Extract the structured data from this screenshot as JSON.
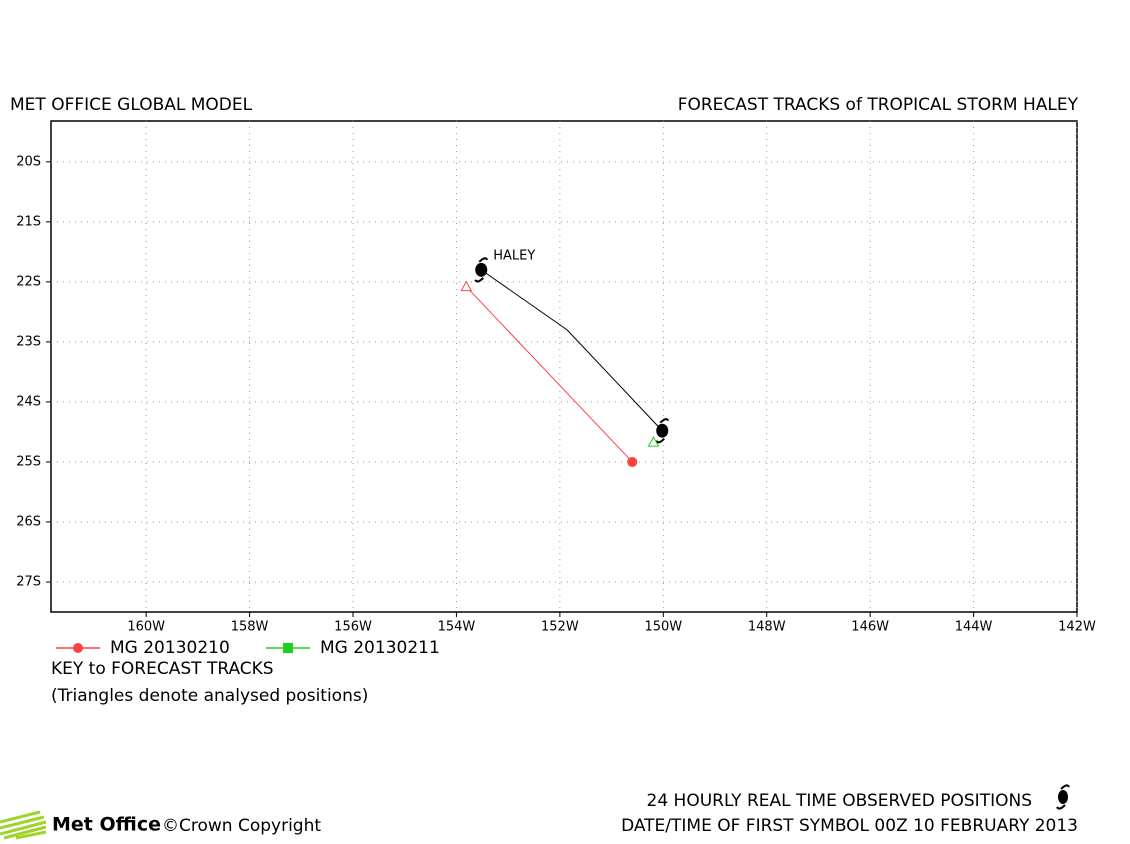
{
  "chart_data": {
    "type": "line",
    "subtitle": "MET OFFICE GLOBAL MODEL",
    "title": "FORECAST TRACKS of TROPICAL STORM HALEY",
    "xlim": [
      -161.84,
      -142
    ],
    "ylim": [
      -27.5,
      -19.32
    ],
    "xticks": [
      {
        "value": -160,
        "label": "160W"
      },
      {
        "value": -158,
        "label": "158W"
      },
      {
        "value": -156,
        "label": "156W"
      },
      {
        "value": -154,
        "label": "154W"
      },
      {
        "value": -152,
        "label": "152W"
      },
      {
        "value": -150,
        "label": "150W"
      },
      {
        "value": -148,
        "label": "148W"
      },
      {
        "value": -146,
        "label": "146W"
      },
      {
        "value": -144,
        "label": "144W"
      },
      {
        "value": -142,
        "label": "142W"
      }
    ],
    "yticks": [
      {
        "value": -20,
        "label": "20S"
      },
      {
        "value": -21,
        "label": "21S"
      },
      {
        "value": -22,
        "label": "22S"
      },
      {
        "value": -23,
        "label": "23S"
      },
      {
        "value": -24,
        "label": "24S"
      },
      {
        "value": -25,
        "label": "25S"
      },
      {
        "value": -26,
        "label": "26S"
      },
      {
        "value": -27,
        "label": "27S"
      }
    ],
    "grid": true,
    "track": {
      "label": "HALEY",
      "color": "#000000",
      "x": [
        -153.52,
        -151.86,
        -150.02
      ],
      "y": [
        -21.8,
        -22.8,
        -24.48
      ]
    },
    "series": [
      {
        "name": "MG 20130210",
        "color": "#ff4040",
        "x": [
          -153.81,
          -150.6
        ],
        "y": [
          -22.08,
          -25.0
        ]
      },
      {
        "name": "MG 20130211",
        "color": "#20d020",
        "x": [
          -150.19
        ],
        "y": [
          -24.67
        ]
      }
    ],
    "key_title": "KEY to FORECAST TRACKS",
    "key_note": "(Triangles denote analysed positions)",
    "observed_note": "24 HOURLY REAL TIME OBSERVED POSITIONS",
    "date_note": "DATE/TIME OF FIRST SYMBOL 00Z 10 FEBRUARY 2013",
    "brand": "Met Office",
    "copyright": "©Crown Copyright"
  }
}
